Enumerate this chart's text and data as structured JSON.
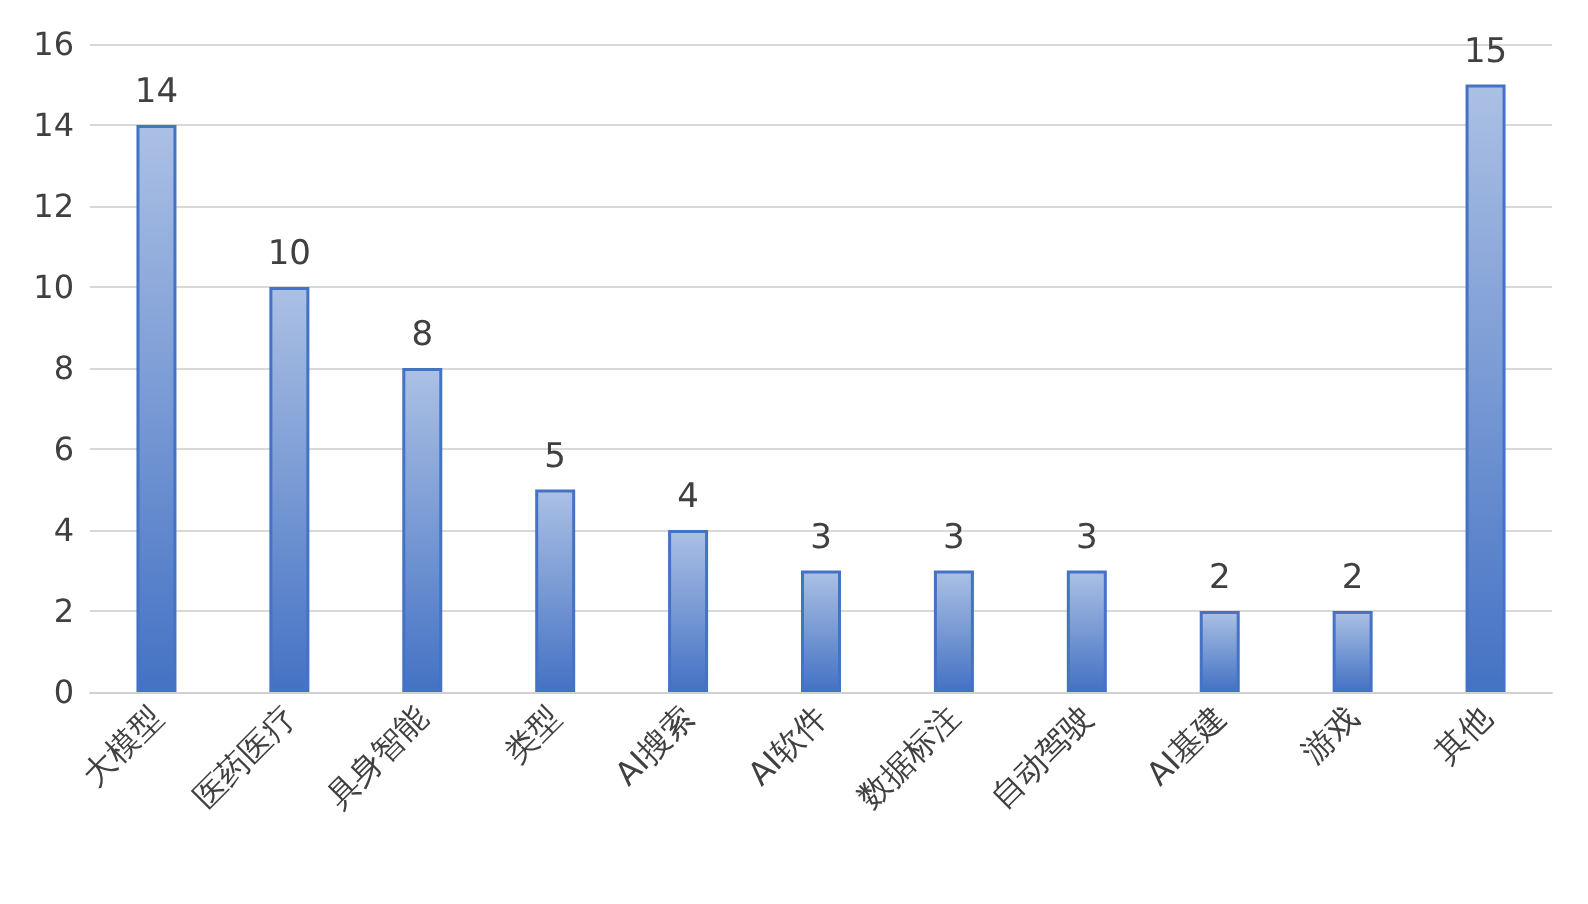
{
  "chart_data": {
    "type": "bar",
    "categories": [
      "大模型",
      "医药医疗",
      "具身智能",
      "类型",
      "AI搜索",
      "AI软件",
      "数据标注",
      "自动驾驶",
      "AI基建",
      "游戏",
      "其他"
    ],
    "values": [
      14,
      10,
      8,
      5,
      4,
      3,
      3,
      3,
      2,
      2,
      15
    ],
    "color": "#4472c4",
    "ylim": [
      0,
      16
    ],
    "yticks": [
      0,
      2,
      4,
      6,
      8,
      10,
      12,
      14,
      16
    ],
    "grid": "y",
    "data_labels": true
  }
}
